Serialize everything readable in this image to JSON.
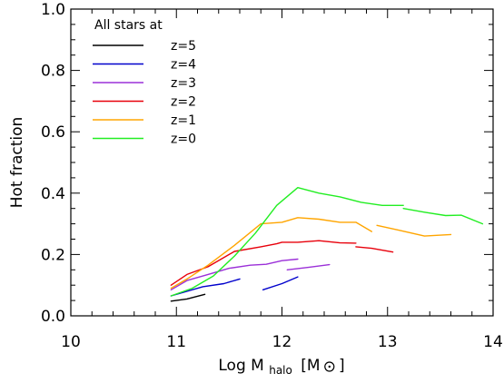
{
  "chart_data": {
    "type": "line",
    "title": "",
    "xlabel": "Log M",
    "xlabel_sub": "halo",
    "xlabel_unit": "[M",
    "xlabel_unit_close": "]",
    "ylabel": "Hot fraction",
    "xlim": [
      10,
      14
    ],
    "ylim": [
      0,
      1
    ],
    "x_ticks": [
      10,
      11,
      12,
      13,
      14
    ],
    "x_tick_labels": [
      "10",
      "11",
      "12",
      "13",
      "14"
    ],
    "y_ticks": [
      0.0,
      0.2,
      0.4,
      0.6,
      0.8,
      1.0
    ],
    "y_tick_labels": [
      "0.0",
      "0.2",
      "0.4",
      "0.6",
      "0.8",
      "1.0"
    ],
    "grid": false,
    "legend_title": "All stars at",
    "legend_position": "top-left",
    "series": [
      {
        "name": "z=5",
        "color": "#000000",
        "segments": [
          [
            [
              10.95,
              0.048
            ],
            [
              11.1,
              0.055
            ],
            [
              11.27,
              0.07
            ]
          ]
        ]
      },
      {
        "name": "z=4",
        "color": "#0000cc",
        "segments": [
          [
            [
              10.95,
              0.065
            ],
            [
              11.1,
              0.08
            ],
            [
              11.25,
              0.095
            ],
            [
              11.45,
              0.105
            ],
            [
              11.6,
              0.12
            ]
          ],
          [
            [
              11.82,
              0.085
            ],
            [
              12.0,
              0.105
            ],
            [
              12.15,
              0.127
            ]
          ]
        ]
      },
      {
        "name": "z=3",
        "color": "#9b30d8",
        "segments": [
          [
            [
              10.95,
              0.085
            ],
            [
              11.1,
              0.115
            ],
            [
              11.3,
              0.135
            ],
            [
              11.5,
              0.155
            ],
            [
              11.7,
              0.165
            ],
            [
              11.85,
              0.168
            ],
            [
              12.0,
              0.18
            ],
            [
              12.15,
              0.185
            ]
          ],
          [
            [
              12.05,
              0.15
            ],
            [
              12.25,
              0.158
            ],
            [
              12.45,
              0.167
            ]
          ]
        ]
      },
      {
        "name": "z=2",
        "color": "#e8000b",
        "segments": [
          [
            [
              10.95,
              0.1
            ],
            [
              11.1,
              0.135
            ],
            [
              11.3,
              0.16
            ],
            [
              11.55,
              0.21
            ],
            [
              11.8,
              0.225
            ],
            [
              11.95,
              0.235
            ],
            [
              12.0,
              0.24
            ],
            [
              12.15,
              0.24
            ],
            [
              12.35,
              0.245
            ],
            [
              12.55,
              0.238
            ],
            [
              12.7,
              0.237
            ]
          ],
          [
            [
              12.7,
              0.225
            ],
            [
              12.85,
              0.22
            ],
            [
              13.05,
              0.208
            ]
          ]
        ]
      },
      {
        "name": "z=1",
        "color": "#ffa500",
        "segments": [
          [
            [
              10.95,
              0.09
            ],
            [
              11.1,
              0.12
            ],
            [
              11.3,
              0.165
            ],
            [
              11.55,
              0.23
            ],
            [
              11.8,
              0.3
            ],
            [
              12.0,
              0.305
            ],
            [
              12.15,
              0.32
            ],
            [
              12.35,
              0.315
            ],
            [
              12.55,
              0.305
            ],
            [
              12.7,
              0.305
            ],
            [
              12.85,
              0.275
            ]
          ],
          [
            [
              12.9,
              0.295
            ],
            [
              13.1,
              0.28
            ],
            [
              13.35,
              0.26
            ],
            [
              13.6,
              0.265
            ]
          ]
        ]
      },
      {
        "name": "z=0",
        "color": "#22ee22",
        "segments": [
          [
            [
              10.95,
              0.065
            ],
            [
              11.15,
              0.09
            ],
            [
              11.35,
              0.13
            ],
            [
              11.55,
              0.195
            ],
            [
              11.75,
              0.27
            ],
            [
              11.95,
              0.36
            ],
            [
              12.15,
              0.418
            ],
            [
              12.35,
              0.4
            ],
            [
              12.55,
              0.388
            ],
            [
              12.75,
              0.37
            ],
            [
              12.95,
              0.36
            ],
            [
              13.15,
              0.36
            ]
          ],
          [
            [
              13.15,
              0.35
            ],
            [
              13.35,
              0.338
            ],
            [
              13.55,
              0.327
            ],
            [
              13.7,
              0.328
            ],
            [
              13.9,
              0.3
            ]
          ]
        ]
      }
    ]
  }
}
